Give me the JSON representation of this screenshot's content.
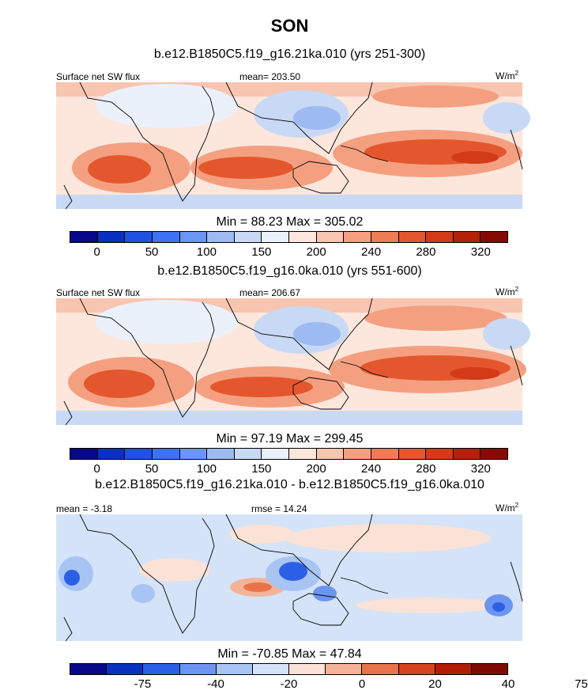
{
  "figure": {
    "season": "SON",
    "subtitle_top": "b.e12.B1850C5.f19_g16.21ka.010 (yrs 251-300)",
    "subtitle_mid": "b.e12.B1850C5.f19_g16.0ka.010 (yrs 551-600)",
    "subtitle_bottom": "b.e12.B1850C5.f19_g16.21ka.010 - b.e12.B1850C5.f19_g16.0ka.010"
  },
  "panels": [
    {
      "left_label": "Surface net SW flux",
      "center_label": "mean= 203.50",
      "units": "W/m",
      "units_sup": "2",
      "minmax": "Min =  88.23 Max = 305.02"
    },
    {
      "left_label": "Surface net SW flux",
      "center_label": "mean= 206.67",
      "units": "W/m",
      "units_sup": "2",
      "minmax": "Min =  97.19 Max = 299.45"
    },
    {
      "left_label": "mean =  -3.18",
      "center_label": "rmse =  14.24",
      "units": "W/m",
      "units_sup": "2",
      "minmax": "Min = -70.85 Max =  47.84"
    }
  ],
  "colors": {
    "abs_scale": [
      "#08088a",
      "#0a30c0",
      "#1f52e0",
      "#3d72f0",
      "#6a95f2",
      "#9ebaf2",
      "#c8d9f5",
      "#eaf1fb",
      "#fde6dc",
      "#f8c5b0",
      "#f4a080",
      "#ee7c55",
      "#e4572e",
      "#d33a18",
      "#b22208",
      "#850b02"
    ],
    "diff_scale": [
      "#08088a",
      "#0a30c0",
      "#2b60e6",
      "#6b95f0",
      "#a8c4f3",
      "#d4e3f8",
      "#fbe2d6",
      "#f4b398",
      "#e8734a",
      "#d6421e",
      "#b31d08",
      "#7f0a02"
    ],
    "land_outline": "#000000"
  },
  "chart_data": [
    {
      "type": "heatmap",
      "title": "b.e12.B1850C5.f19_g16.21ka.010 (yrs 251-300)",
      "variable": "Surface net SW flux",
      "units": "W/m2",
      "mean": 203.5,
      "min": 88.23,
      "max": 305.02,
      "colorbar_ticks": [
        "0",
        "50",
        "100",
        "150",
        "200",
        "240",
        "280",
        "320"
      ],
      "colorbar_tick_slots": [
        1,
        3,
        5,
        7,
        9,
        11,
        13,
        15
      ]
    },
    {
      "type": "heatmap",
      "title": "b.e12.B1850C5.f19_g16.0ka.010 (yrs 551-600)",
      "variable": "Surface net SW flux",
      "units": "W/m2",
      "mean": 206.67,
      "min": 97.19,
      "max": 299.45,
      "colorbar_ticks": [
        "0",
        "50",
        "100",
        "150",
        "200",
        "240",
        "280",
        "320"
      ],
      "colorbar_tick_slots": [
        1,
        3,
        5,
        7,
        9,
        11,
        13,
        15
      ]
    },
    {
      "type": "heatmap",
      "title": "b.e12.B1850C5.f19_g16.21ka.010 - b.e12.B1850C5.f19_g16.0ka.010",
      "units": "W/m2",
      "mean": -3.18,
      "rmse": 14.24,
      "min": -70.85,
      "max": 47.84,
      "colorbar_ticks": [
        "-75",
        "-40",
        "-20",
        "0",
        "20",
        "40",
        "75"
      ],
      "colorbar_tick_slots": [
        2,
        4,
        6,
        8,
        10,
        12,
        14
      ]
    }
  ]
}
